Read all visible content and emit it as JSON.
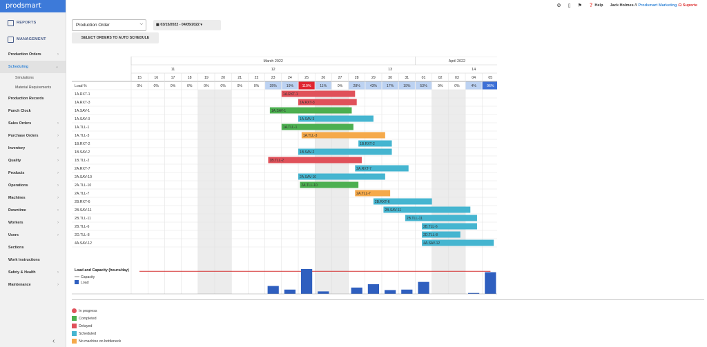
{
  "sidebar": {
    "logo": "prodsmart",
    "reports": "REPORTS",
    "management": "MANAGEMENT",
    "items": [
      {
        "label": "Production Orders",
        "chevron": true
      },
      {
        "label": "Scheduling",
        "chevron": true,
        "active": true,
        "sub": [
          "Simulations",
          "Material Requirements"
        ]
      },
      {
        "label": "Production Records",
        "chevron": false
      },
      {
        "label": "Punch Clock",
        "chevron": false
      },
      {
        "label": "Sales Orders",
        "chevron": true
      },
      {
        "label": "Purchase Orders",
        "chevron": true
      },
      {
        "label": "Inventory",
        "chevron": true
      },
      {
        "label": "Quality",
        "chevron": true
      },
      {
        "label": "Products",
        "chevron": true
      },
      {
        "label": "Operations",
        "chevron": true
      },
      {
        "label": "Machines",
        "chevron": true
      },
      {
        "label": "Downtime",
        "chevron": true
      },
      {
        "label": "Workers",
        "chevron": true
      },
      {
        "label": "Users",
        "chevron": true
      },
      {
        "label": "Sections",
        "chevron": false
      },
      {
        "label": "Work Instructions",
        "chevron": false
      },
      {
        "label": "Safety & Health",
        "chevron": true
      },
      {
        "label": "Maintenance",
        "chevron": true
      }
    ],
    "collapse_icon": "chevron-left-icon"
  },
  "topbar": {
    "icons": [
      "gear-icon",
      "mobile-icon",
      "bookmark-icon"
    ],
    "help": "Help",
    "user": "Jack Holmes //",
    "company": "Prodsmart Marketing",
    "support": "Suporte"
  },
  "toolbar": {
    "order_select": "Production Order",
    "date_range": "03/15/2022 - 04/05/2022",
    "auto_schedule": "SELECT ORDERS TO AUTO SCHEDULE"
  },
  "gantt": {
    "months": [
      {
        "label": "March 2022",
        "span": 17
      },
      {
        "label": "April 2022",
        "span": 5
      }
    ],
    "weeks": [
      {
        "label": "11",
        "span": 5
      },
      {
        "label": "12",
        "span": 7
      },
      {
        "label": "13",
        "span": 7
      },
      {
        "label": "14",
        "span": 3
      }
    ],
    "days": [
      "15",
      "16",
      "17",
      "18",
      "19",
      "20",
      "21",
      "22",
      "23",
      "24",
      "25",
      "26",
      "27",
      "28",
      "29",
      "30",
      "31",
      "01",
      "02",
      "03",
      "04",
      "05"
    ],
    "weekend_indices": [
      4,
      5,
      11,
      12,
      18,
      19
    ],
    "load_label": "Load %",
    "load": [
      "0%",
      "0%",
      "0%",
      "0%",
      "0%",
      "0%",
      "0%",
      "0%",
      "35%",
      "19%",
      "110%",
      "11%",
      "0%",
      "28%",
      "43%",
      "17%",
      "19%",
      "53%",
      "0%",
      "0%",
      "4%",
      "96%"
    ],
    "load_values": [
      0,
      0,
      0,
      0,
      0,
      0,
      0,
      0,
      35,
      19,
      110,
      11,
      0,
      28,
      43,
      17,
      19,
      53,
      0,
      0,
      4,
      96
    ],
    "colors": {
      "in_progress": "#e0515a",
      "completed": "#4caf50",
      "delayed": "#e0515a",
      "scheduled": "#45b5d0",
      "no_machine": "#f5a94a",
      "capacity": "#d32f2f",
      "load": "#2f5fbf"
    },
    "rows": [
      {
        "label": "1A.RXT-1",
        "start": 9.0,
        "end": 13.4,
        "status": "delayed"
      },
      {
        "label": "1A.RXT-3",
        "start": 10.0,
        "end": 13.5,
        "status": "delayed"
      },
      {
        "label": "1A.SAV-1",
        "start": 8.3,
        "end": 13.2,
        "status": "completed"
      },
      {
        "label": "1A.SAV-3",
        "start": 10.0,
        "end": 14.5,
        "status": "scheduled"
      },
      {
        "label": "1A.TLL-1",
        "start": 9.0,
        "end": 13.3,
        "status": "completed"
      },
      {
        "label": "1A.TLL-3",
        "start": 10.2,
        "end": 15.2,
        "status": "no_machine"
      },
      {
        "label": "1B.RXT-2",
        "start": 13.6,
        "end": 15.6,
        "status": "scheduled"
      },
      {
        "label": "1B.SAV-2",
        "start": 10.0,
        "end": 15.6,
        "status": "scheduled"
      },
      {
        "label": "1B.TLL-2",
        "start": 8.2,
        "end": 13.8,
        "status": "delayed"
      },
      {
        "label": "2A.RXT-7",
        "start": 13.4,
        "end": 16.6,
        "status": "scheduled"
      },
      {
        "label": "2A.SAV-10",
        "start": 10.0,
        "end": 15.2,
        "status": "scheduled"
      },
      {
        "label": "2A.TLL-10",
        "start": 10.1,
        "end": 13.6,
        "status": "completed"
      },
      {
        "label": "2A.TLL-7",
        "start": 13.4,
        "end": 15.5,
        "status": "no_machine"
      },
      {
        "label": "2B.RXT-6",
        "start": 14.5,
        "end": 18.0,
        "status": "scheduled"
      },
      {
        "label": "2B.SAV-11",
        "start": 15.1,
        "end": 20.3,
        "status": "scheduled"
      },
      {
        "label": "2B.TLL-11",
        "start": 16.4,
        "end": 20.7,
        "status": "scheduled"
      },
      {
        "label": "2B.TLL-6",
        "start": 17.4,
        "end": 20.7,
        "status": "scheduled"
      },
      {
        "label": "2D.TLL-8",
        "start": 17.4,
        "end": 19.7,
        "status": "scheduled"
      },
      {
        "label": "4A.SAV-12",
        "start": 17.4,
        "end": 21.7,
        "status": "scheduled"
      }
    ],
    "capacity_title": "Load and Capacity (hours/day)",
    "capacity_legend": "Capacity",
    "load_legend": "Load"
  },
  "legend": [
    {
      "label": "In progress",
      "color": "#e0515a",
      "icon": true
    },
    {
      "label": "Completed",
      "color": "#4caf50"
    },
    {
      "label": "Delayed",
      "color": "#e0515a"
    },
    {
      "label": "Scheduled",
      "color": "#45b5d0"
    },
    {
      "label": "No machine on bottleneck",
      "color": "#f5a94a"
    }
  ]
}
